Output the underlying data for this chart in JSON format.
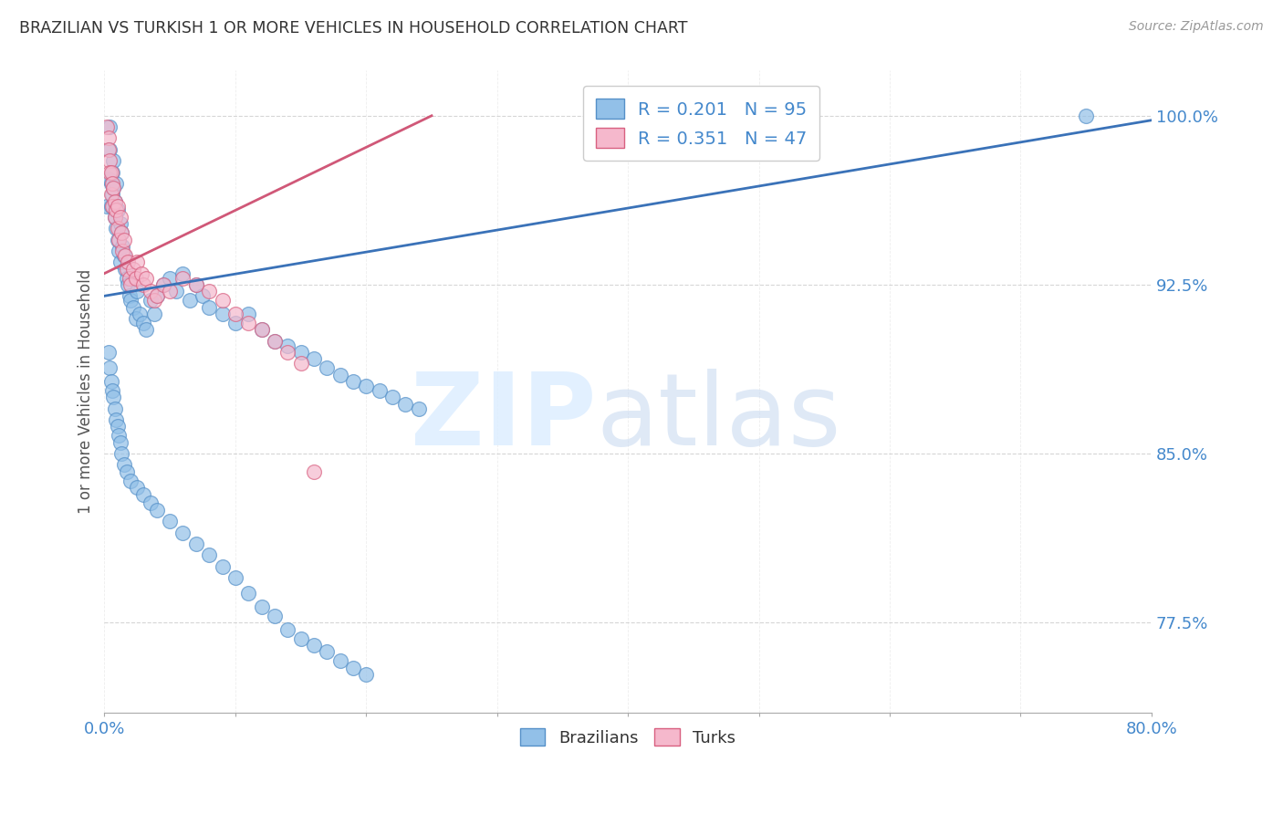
{
  "title": "BRAZILIAN VS TURKISH 1 OR MORE VEHICLES IN HOUSEHOLD CORRELATION CHART",
  "source": "Source: ZipAtlas.com",
  "ylabel": "1 or more Vehicles in Household",
  "ytick_labels": [
    "100.0%",
    "92.5%",
    "85.0%",
    "77.5%"
  ],
  "ytick_values": [
    1.0,
    0.925,
    0.85,
    0.775
  ],
  "xlim": [
    0.0,
    0.8
  ],
  "ylim": [
    0.735,
    1.02
  ],
  "blue_color": "#92c0e8",
  "pink_color": "#f5b8cc",
  "blue_edge_color": "#5590c8",
  "pink_edge_color": "#d86080",
  "blue_line_color": "#3a72b8",
  "pink_line_color": "#d05878",
  "right_label_color": "#4488cc",
  "title_color": "#333333",
  "legend_label_blue": "R = 0.201   N = 95",
  "legend_label_pink": "R = 0.351   N = 47",
  "bottom_legend_labels": [
    "Brazilians",
    "Turks"
  ],
  "watermark_zip": "ZIP",
  "watermark_atlas": "atlas",
  "blue_line_x": [
    0.0,
    0.8
  ],
  "blue_line_y": [
    0.92,
    0.998
  ],
  "pink_line_x": [
    0.0,
    0.25
  ],
  "pink_line_y": [
    0.93,
    1.0
  ],
  "brazilian_x": [
    0.002,
    0.003,
    0.004,
    0.004,
    0.005,
    0.005,
    0.006,
    0.006,
    0.007,
    0.007,
    0.008,
    0.008,
    0.009,
    0.009,
    0.01,
    0.01,
    0.011,
    0.012,
    0.012,
    0.013,
    0.014,
    0.015,
    0.016,
    0.017,
    0.018,
    0.019,
    0.02,
    0.022,
    0.024,
    0.025,
    0.027,
    0.03,
    0.032,
    0.035,
    0.038,
    0.04,
    0.045,
    0.05,
    0.055,
    0.06,
    0.065,
    0.07,
    0.075,
    0.08,
    0.09,
    0.1,
    0.11,
    0.12,
    0.13,
    0.14,
    0.15,
    0.16,
    0.17,
    0.18,
    0.19,
    0.2,
    0.21,
    0.22,
    0.23,
    0.24,
    0.003,
    0.004,
    0.005,
    0.006,
    0.007,
    0.008,
    0.009,
    0.01,
    0.011,
    0.012,
    0.013,
    0.015,
    0.017,
    0.02,
    0.025,
    0.03,
    0.035,
    0.04,
    0.05,
    0.06,
    0.07,
    0.08,
    0.09,
    0.1,
    0.11,
    0.12,
    0.13,
    0.14,
    0.15,
    0.16,
    0.17,
    0.18,
    0.19,
    0.2,
    0.75
  ],
  "brazilian_y": [
    0.96,
    0.972,
    0.985,
    0.995,
    0.97,
    0.96,
    0.975,
    0.965,
    0.968,
    0.98,
    0.955,
    0.962,
    0.97,
    0.95,
    0.958,
    0.945,
    0.94,
    0.952,
    0.935,
    0.948,
    0.942,
    0.938,
    0.932,
    0.928,
    0.925,
    0.92,
    0.918,
    0.915,
    0.91,
    0.922,
    0.912,
    0.908,
    0.905,
    0.918,
    0.912,
    0.92,
    0.925,
    0.928,
    0.922,
    0.93,
    0.918,
    0.925,
    0.92,
    0.915,
    0.912,
    0.908,
    0.912,
    0.905,
    0.9,
    0.898,
    0.895,
    0.892,
    0.888,
    0.885,
    0.882,
    0.88,
    0.878,
    0.875,
    0.872,
    0.87,
    0.895,
    0.888,
    0.882,
    0.878,
    0.875,
    0.87,
    0.865,
    0.862,
    0.858,
    0.855,
    0.85,
    0.845,
    0.842,
    0.838,
    0.835,
    0.832,
    0.828,
    0.825,
    0.82,
    0.815,
    0.81,
    0.805,
    0.8,
    0.795,
    0.788,
    0.782,
    0.778,
    0.772,
    0.768,
    0.765,
    0.762,
    0.758,
    0.755,
    0.752,
    1.0
  ],
  "turkish_x": [
    0.002,
    0.003,
    0.003,
    0.004,
    0.004,
    0.005,
    0.005,
    0.006,
    0.006,
    0.007,
    0.008,
    0.008,
    0.009,
    0.01,
    0.01,
    0.011,
    0.012,
    0.013,
    0.014,
    0.015,
    0.016,
    0.017,
    0.018,
    0.019,
    0.02,
    0.022,
    0.024,
    0.025,
    0.028,
    0.03,
    0.032,
    0.035,
    0.038,
    0.04,
    0.045,
    0.05,
    0.06,
    0.07,
    0.08,
    0.09,
    0.1,
    0.11,
    0.12,
    0.13,
    0.14,
    0.15,
    0.16
  ],
  "turkish_y": [
    0.995,
    0.99,
    0.985,
    0.98,
    0.975,
    0.975,
    0.965,
    0.97,
    0.96,
    0.968,
    0.962,
    0.955,
    0.958,
    0.95,
    0.96,
    0.945,
    0.955,
    0.948,
    0.94,
    0.945,
    0.938,
    0.932,
    0.935,
    0.928,
    0.925,
    0.932,
    0.928,
    0.935,
    0.93,
    0.925,
    0.928,
    0.922,
    0.918,
    0.92,
    0.925,
    0.922,
    0.928,
    0.925,
    0.922,
    0.918,
    0.912,
    0.908,
    0.905,
    0.9,
    0.895,
    0.89,
    0.842
  ]
}
